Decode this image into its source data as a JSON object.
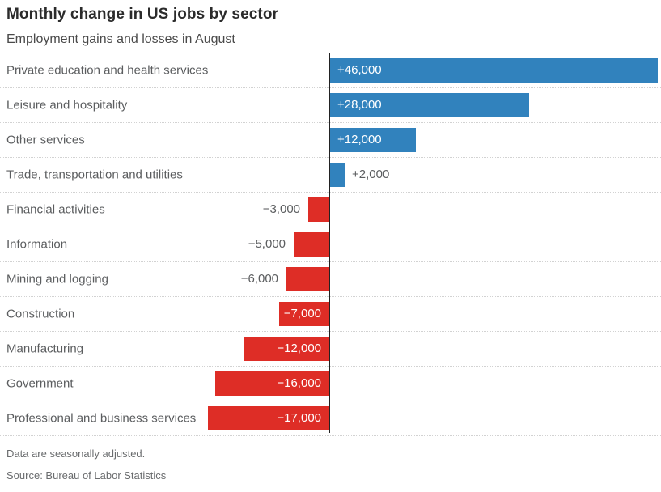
{
  "title": "Monthly change in US jobs by sector",
  "subtitle": "Employment gains and losses in August",
  "footnote": "Data are seasonally adjusted.",
  "source": "Source: Bureau of Labor Statistics",
  "colors": {
    "positive_bar": "#3182bd",
    "negative_bar": "#de2d26",
    "axis_line": "#222222",
    "gridline": "#d2d2d2",
    "category_label": "#5b5d5f",
    "value_label_inside": "#ffffff",
    "value_label_outside": "#5b5d5f",
    "title": "#2b2b2b",
    "subtitle": "#4a4a4a",
    "footer": "#6a6c6e"
  },
  "chart_data": {
    "type": "bar",
    "orientation": "horizontal",
    "title": "Monthly change in US jobs by sector",
    "subtitle": "Employment gains and losses in August",
    "xlabel": "",
    "ylabel": "",
    "xlim": [
      -17000,
      46000
    ],
    "grid": "dotted horizontal row separators, full width",
    "legend": "none",
    "baseline": "vertical zero-axis line between negative and positive bars",
    "categories": [
      "Private education and health services",
      "Leisure and hospitality",
      "Other services",
      "Trade, transportation and utilities",
      "Financial activities",
      "Information",
      "Mining and logging",
      "Construction",
      "Manufacturing",
      "Government",
      "Professional and business services"
    ],
    "values": [
      46000,
      28000,
      12000,
      2000,
      -3000,
      -5000,
      -6000,
      -7000,
      -12000,
      -16000,
      -17000
    ],
    "value_labels": [
      "+46,000",
      "+28,000",
      "+12,000",
      "+2,000",
      "−3,000",
      "−5,000",
      "−6,000",
      "−7,000",
      "−12,000",
      "−16,000",
      "−17,000"
    ]
  }
}
